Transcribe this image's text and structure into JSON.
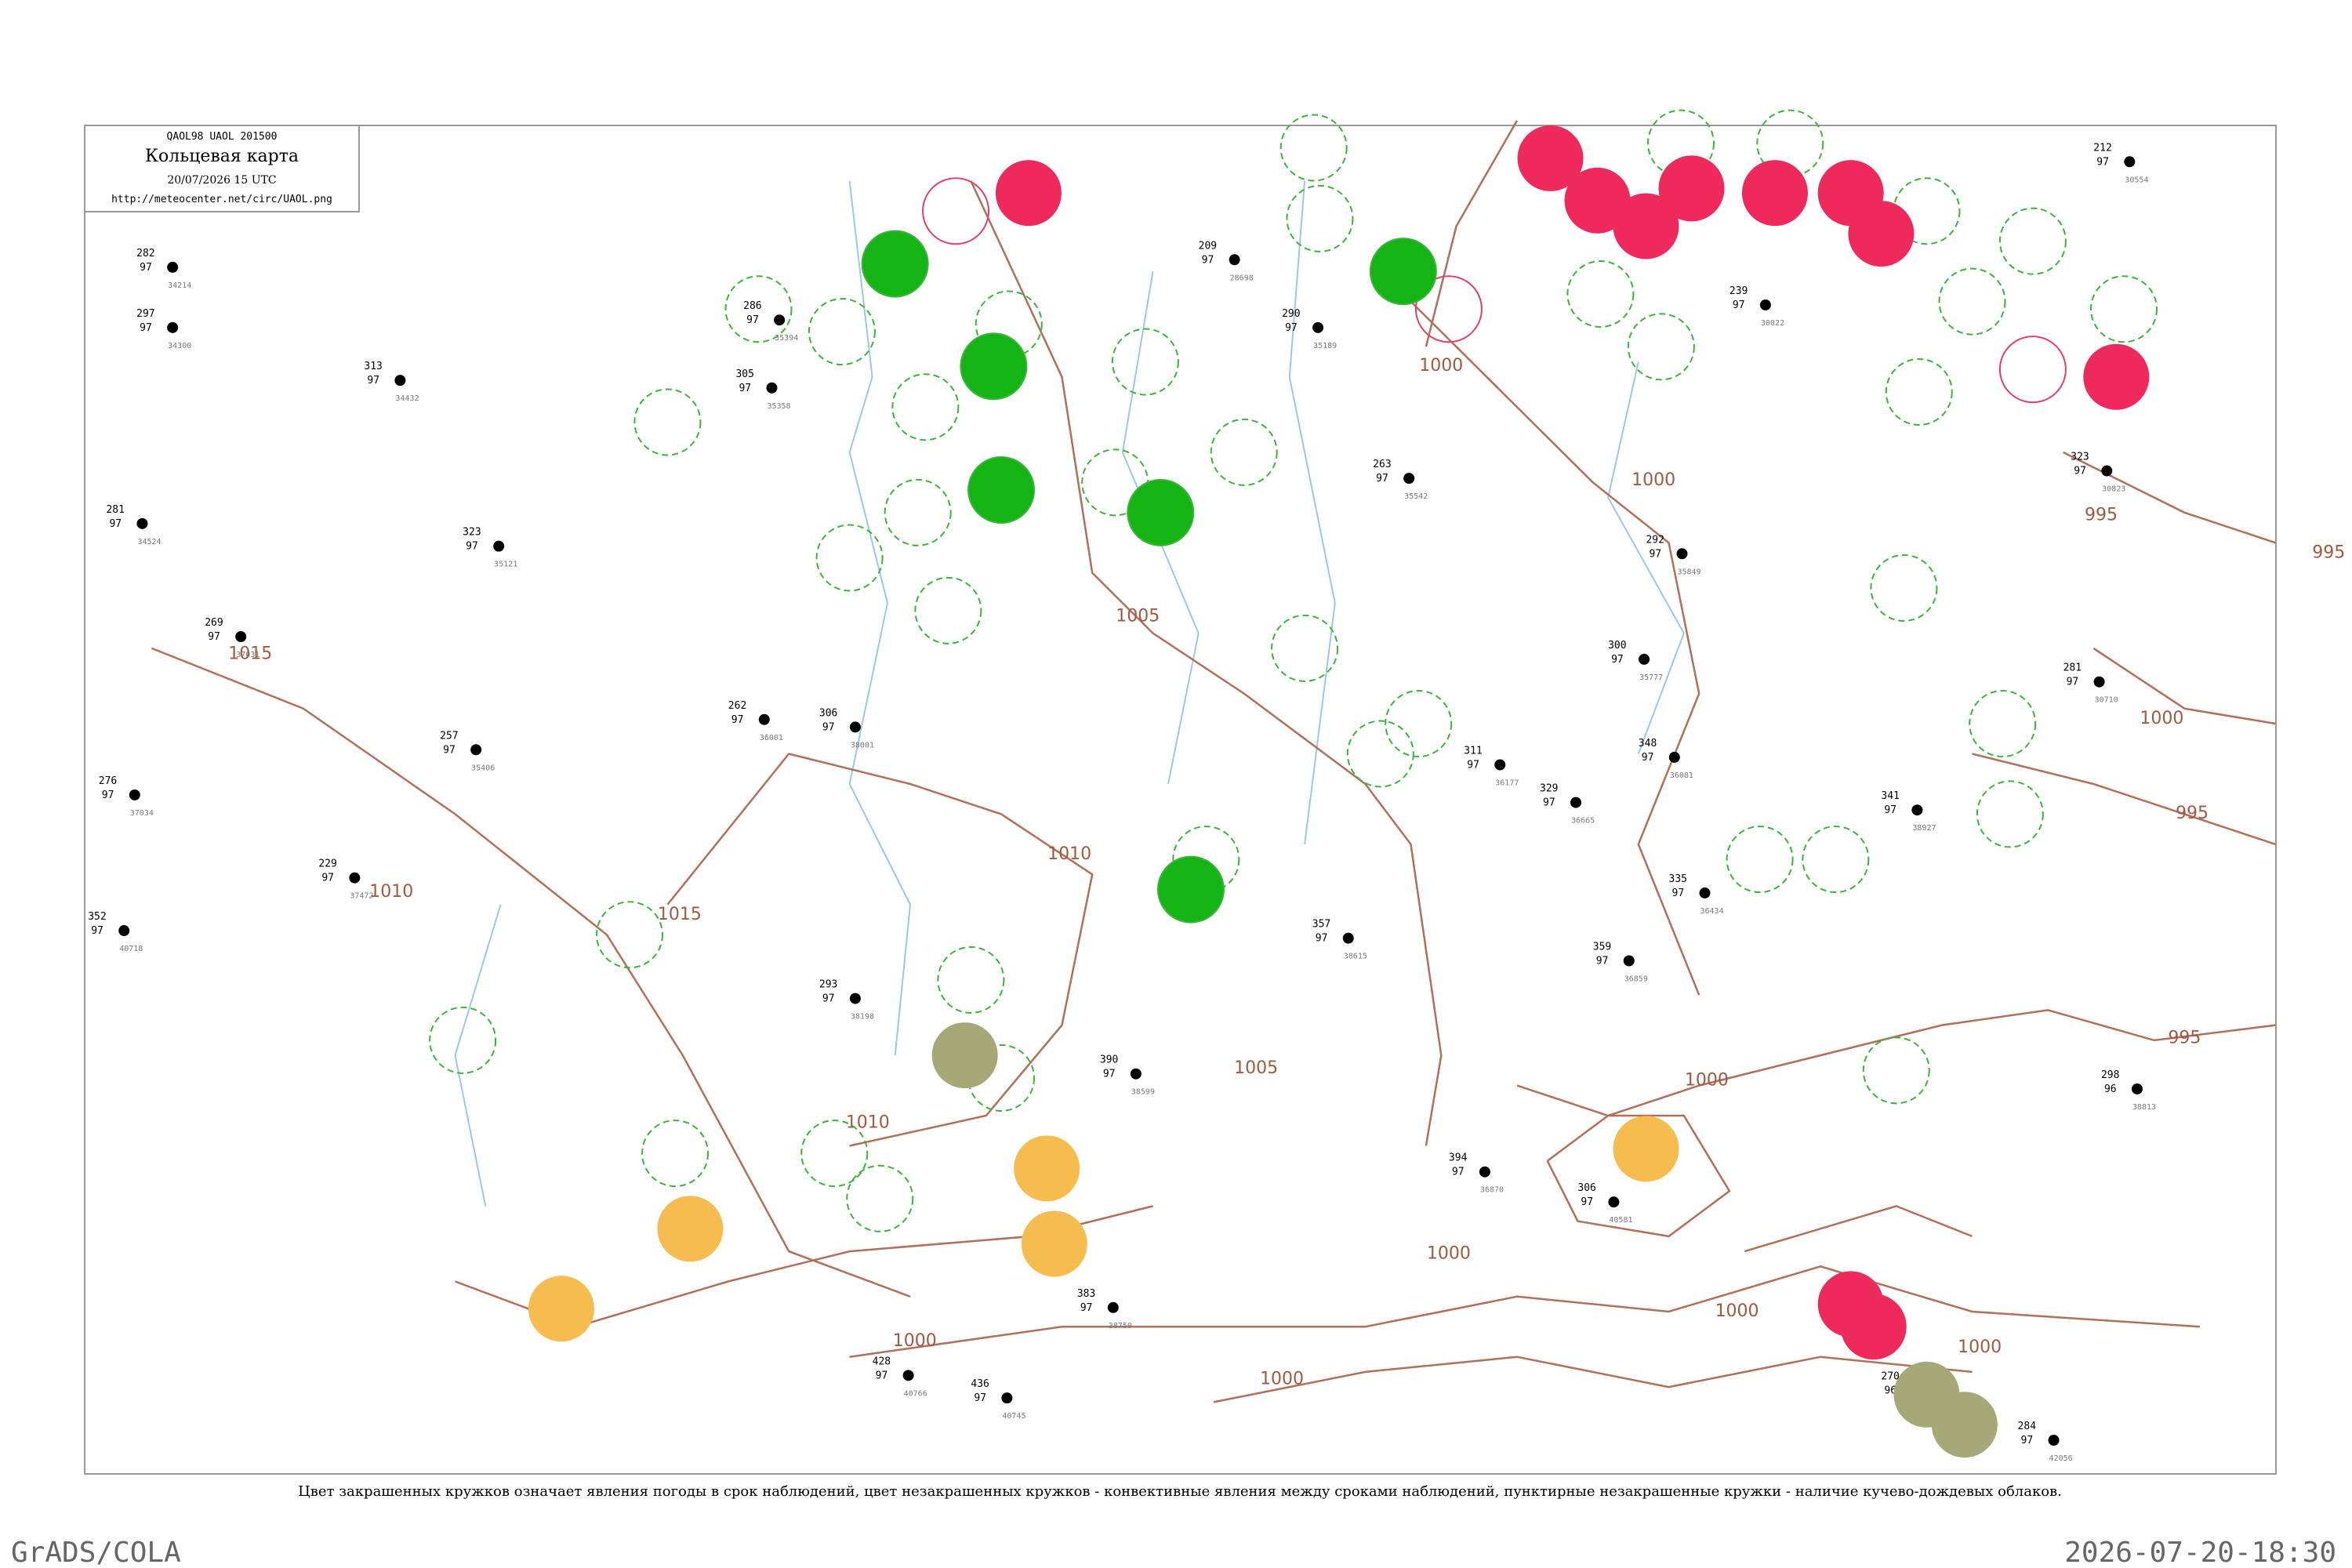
{
  "header": {
    "code": "QAOL98  UAOL  201500",
    "title": "Кольцевая карта",
    "time": "20/07/2026 15 UTC",
    "url": "http://meteocenter.net/circ/UAOL.png"
  },
  "isobars": [
    {
      "label": "1015"
    },
    {
      "label": "1015"
    },
    {
      "label": "1010"
    },
    {
      "label": "1010"
    },
    {
      "label": "1010"
    },
    {
      "label": "1005"
    },
    {
      "label": "1005"
    },
    {
      "label": "1000"
    },
    {
      "label": "1000"
    },
    {
      "label": "1000"
    },
    {
      "label": "1000"
    },
    {
      "label": "1000"
    },
    {
      "label": "1000"
    },
    {
      "label": "1000"
    },
    {
      "label": "1000"
    },
    {
      "label": "1000"
    },
    {
      "label": "995"
    },
    {
      "label": "995"
    },
    {
      "label": "995"
    },
    {
      "label": "995"
    }
  ],
  "stations": [
    {
      "p": "282",
      "h": "97",
      "id": "34214"
    },
    {
      "p": "297",
      "h": "97",
      "id": "34300"
    },
    {
      "p": "313",
      "h": "97",
      "id": "34432"
    },
    {
      "p": "281",
      "h": "97",
      "id": "34524"
    },
    {
      "p": "269",
      "h": "97",
      "id": "37031"
    },
    {
      "p": "276",
      "h": "97",
      "id": "37034"
    },
    {
      "p": "229",
      "h": "97",
      "id": "37472"
    },
    {
      "p": "352",
      "h": "97",
      "id": "40718"
    },
    {
      "p": "286",
      "h": "97",
      "id": "35394"
    },
    {
      "p": "305",
      "h": "97",
      "id": "35358"
    },
    {
      "p": "323",
      "h": "97",
      "id": "35121"
    },
    {
      "p": "257",
      "h": "97",
      "id": "35406"
    },
    {
      "p": "262",
      "h": "97",
      "id": "36001"
    },
    {
      "p": "306",
      "h": "97",
      "id": "38001"
    },
    {
      "p": "293",
      "h": "97",
      "id": "38198"
    },
    {
      "p": "357",
      "h": "97",
      "id": "38615"
    },
    {
      "p": "390",
      "h": "97",
      "id": "38599"
    },
    {
      "p": "383",
      "h": "97",
      "id": "38750"
    },
    {
      "p": "436",
      "h": "97",
      "id": "40745"
    },
    {
      "p": "428",
      "h": "97",
      "id": "40766"
    },
    {
      "p": "209",
      "h": "97",
      "id": "28698"
    },
    {
      "p": "290",
      "h": "97",
      "id": "35189"
    },
    {
      "p": "263",
      "h": "97",
      "id": "35542"
    },
    {
      "p": "311",
      "h": "97",
      "id": "36177"
    },
    {
      "p": "329",
      "h": "97",
      "id": "36665"
    },
    {
      "p": "359",
      "h": "97",
      "id": "36859"
    },
    {
      "p": "394",
      "h": "97",
      "id": "36870"
    },
    {
      "p": "292",
      "h": "97",
      "id": "35849"
    },
    {
      "p": "300",
      "h": "97",
      "id": "35777"
    },
    {
      "p": "348",
      "h": "97",
      "id": "36081"
    },
    {
      "p": "335",
      "h": "97",
      "id": "36434"
    },
    {
      "p": "281",
      "h": "97",
      "id": "30710"
    },
    {
      "p": "323",
      "h": "97",
      "id": "30823"
    },
    {
      "p": "212",
      "h": "97",
      "id": "30554"
    },
    {
      "p": "239",
      "h": "97",
      "id": "30022"
    },
    {
      "p": "341",
      "h": "97",
      "id": "38927"
    },
    {
      "p": "298",
      "h": "96",
      "id": "38813"
    },
    {
      "p": "284",
      "h": "97",
      "id": "42056"
    },
    {
      "p": "270",
      "h": "96",
      "id": "41660"
    },
    {
      "p": "306",
      "h": "97",
      "id": "40581"
    }
  ],
  "caption": "Цвет закрашенных кружков означает явления погоды в срок наблюдений, цвет незакрашенных кружков - конвективные явления между сроками наблюдений, пунктирные незакрашенные кружки - наличие кучево-дождевых облаков.",
  "footer": {
    "left": "GrADS/COLA",
    "right": "2026-07-20-18:30"
  }
}
